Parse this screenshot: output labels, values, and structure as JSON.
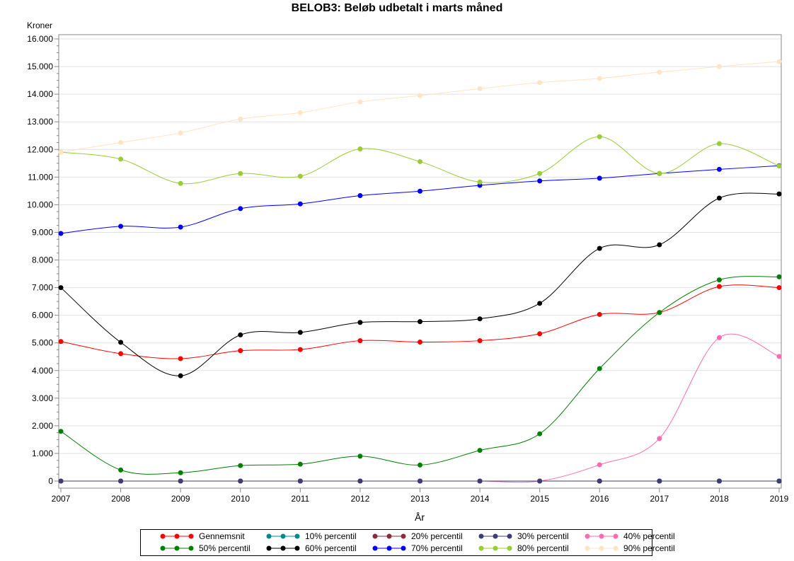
{
  "chart_data": {
    "type": "line",
    "title": "BELOB3: Beløb udbetalt i marts måned",
    "xlabel": "År",
    "ylabel": "Kroner",
    "x": [
      2007,
      2008,
      2009,
      2010,
      2011,
      2012,
      2013,
      2014,
      2015,
      2016,
      2017,
      2018,
      2019
    ],
    "xlim": [
      2007,
      2019
    ],
    "ylim": [
      0,
      16000
    ],
    "yticks": [
      "0",
      "1.000",
      "2.000",
      "3.000",
      "4.000",
      "5.000",
      "6.000",
      "7.000",
      "8.000",
      "9.000",
      "10.000",
      "11.000",
      "12.000",
      "13.000",
      "14.000",
      "15.000",
      "16.000"
    ],
    "grid": true,
    "legend_position": "bottom",
    "series": [
      {
        "name": "Gennemsnit",
        "color": "#ff0000",
        "values": [
          5050,
          4610,
          4430,
          4720,
          4760,
          5080,
          5030,
          5080,
          5330,
          6030,
          6100,
          7040,
          7000
        ]
      },
      {
        "name": "10% percentil",
        "color": "#008b8b",
        "values": [
          0,
          0,
          0,
          0,
          0,
          0,
          0,
          0,
          0,
          0,
          0,
          0,
          0
        ]
      },
      {
        "name": "20% percentil",
        "color": "#8b2a3a",
        "values": [
          0,
          0,
          0,
          0,
          0,
          0,
          0,
          0,
          0,
          0,
          0,
          0,
          0
        ]
      },
      {
        "name": "40% percentil",
        "color": "#ff69b4",
        "values": [
          0,
          0,
          0,
          0,
          0,
          0,
          0,
          0,
          0,
          590,
          1540,
          5190,
          4510
        ]
      },
      {
        "name": "30% percentil",
        "color": "#3c3c78",
        "values": [
          0,
          0,
          0,
          0,
          0,
          0,
          0,
          0,
          0,
          0,
          0,
          0,
          0
        ]
      },
      {
        "name": "50% percentil",
        "color": "#008000",
        "values": [
          1800,
          400,
          300,
          560,
          610,
          900,
          580,
          1110,
          1710,
          4070,
          6100,
          7280,
          7390
        ]
      },
      {
        "name": "60% percentil",
        "color": "#000000",
        "values": [
          7000,
          5020,
          3810,
          5290,
          5380,
          5740,
          5770,
          5870,
          6430,
          8420,
          8550,
          10240,
          10390
        ]
      },
      {
        "name": "70% percentil",
        "color": "#0000ff",
        "values": [
          8960,
          9220,
          9190,
          9860,
          10030,
          10330,
          10490,
          10700,
          10860,
          10960,
          11130,
          11280,
          11410
        ]
      },
      {
        "name": "80% percentil",
        "color": "#9acd32",
        "values": [
          11900,
          11650,
          10770,
          11130,
          11030,
          12020,
          11560,
          10820,
          11130,
          12460,
          11130,
          12210,
          11400
        ]
      },
      {
        "name": "90% percentil",
        "color": "#ffe4c4",
        "values": [
          11900,
          12250,
          12600,
          13100,
          13330,
          13720,
          13950,
          14200,
          14420,
          14570,
          14800,
          15000,
          15180
        ]
      }
    ],
    "legend_order": [
      "Gennemsnit",
      "10% percentil",
      "20% percentil",
      "30% percentil",
      "40% percentil",
      "50% percentil",
      "60% percentil",
      "70% percentil",
      "80% percentil",
      "90% percentil"
    ]
  }
}
